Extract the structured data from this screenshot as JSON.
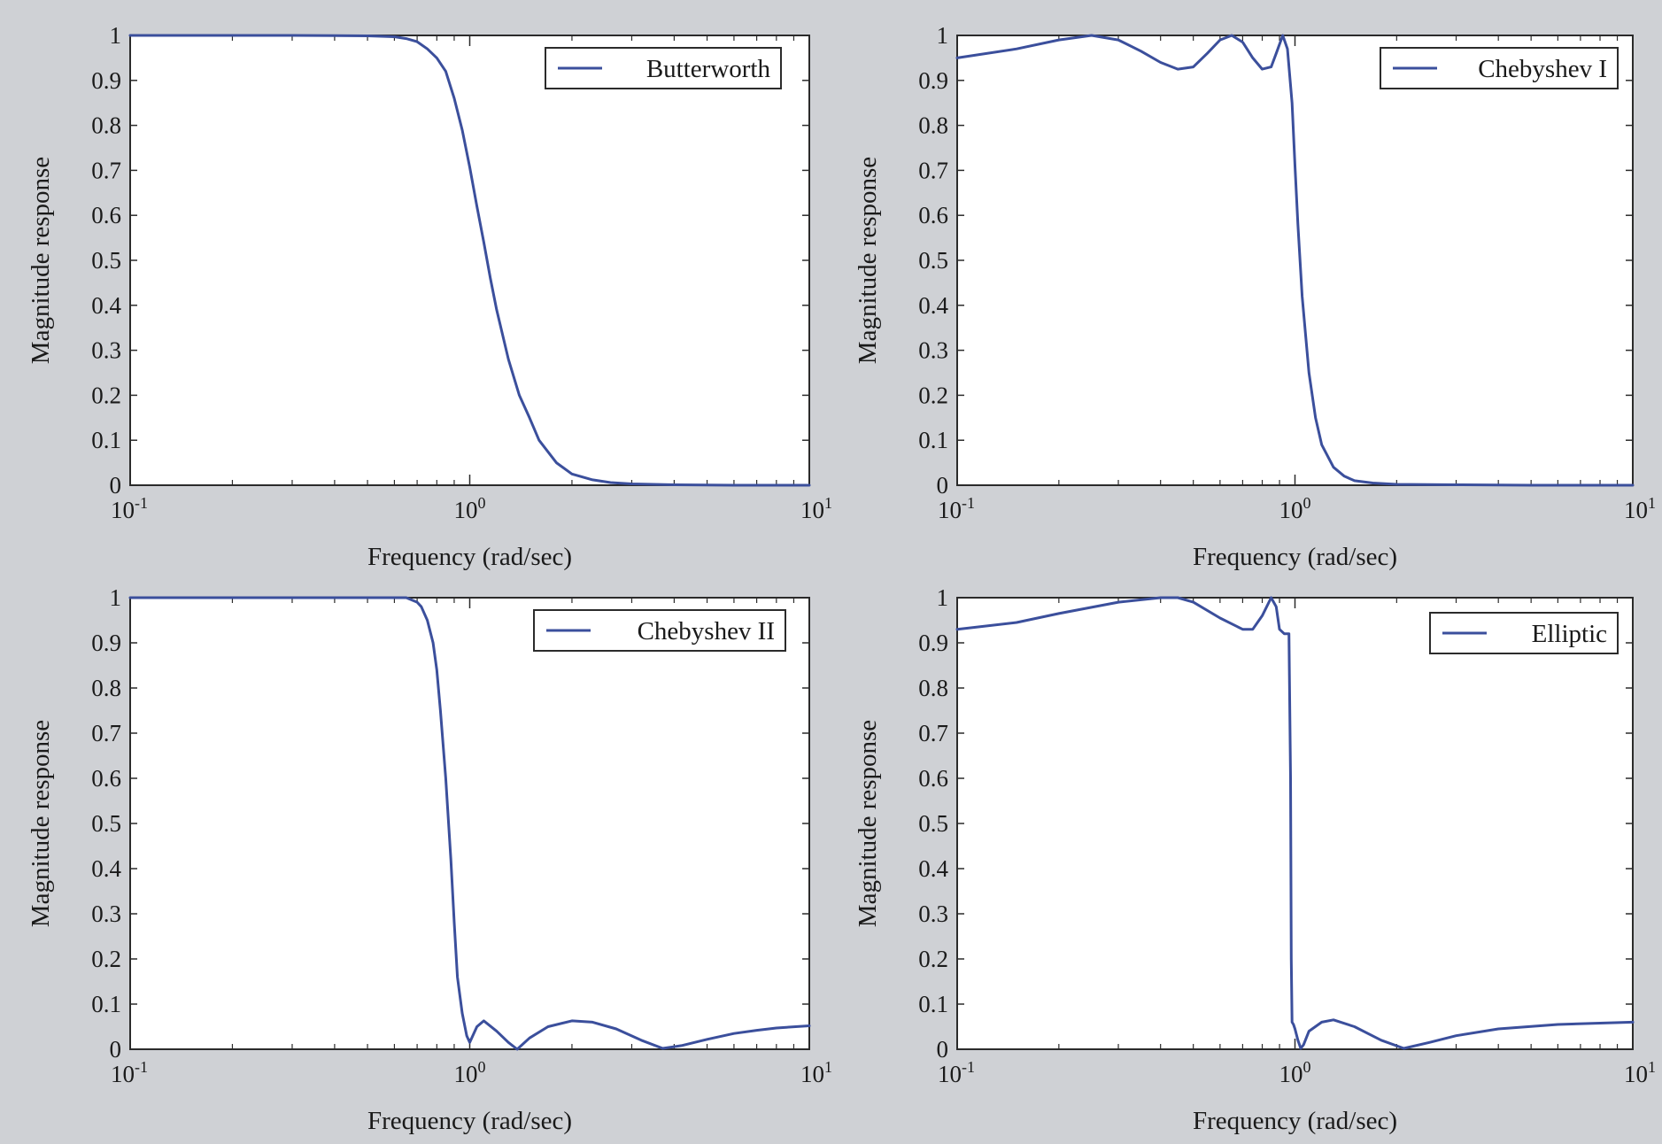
{
  "figure": {
    "background": "#cfd1d5",
    "line_color": "#3b4f9c"
  },
  "chart_data": [
    {
      "type": "line",
      "xscale": "log",
      "xlim": [
        0.1,
        10
      ],
      "ylim": [
        0,
        1
      ],
      "xlabel": "Frequency (rad/sec)",
      "ylabel": "Magnitude response",
      "xticks": [
        {
          "value": 0.1,
          "base": "10",
          "exp": "-1"
        },
        {
          "value": 1,
          "base": "10",
          "exp": "0"
        },
        {
          "value": 10,
          "base": "10",
          "exp": "1"
        }
      ],
      "yticks": [
        "0",
        "0.1",
        "0.2",
        "0.3",
        "0.4",
        "0.5",
        "0.6",
        "0.7",
        "0.8",
        "0.9",
        "1"
      ],
      "legend": "top-right",
      "grid": false,
      "series": [
        {
          "name": "Butterworth",
          "x": [
            0.1,
            0.3,
            0.5,
            0.6,
            0.65,
            0.7,
            0.75,
            0.8,
            0.85,
            0.9,
            0.95,
            1.0,
            1.05,
            1.1,
            1.15,
            1.2,
            1.3,
            1.4,
            1.5,
            1.6,
            1.8,
            2.0,
            2.3,
            2.6,
            3,
            4,
            6,
            10
          ],
          "y": [
            1,
            1,
            0.999,
            0.997,
            0.993,
            0.986,
            0.97,
            0.95,
            0.92,
            0.86,
            0.79,
            0.707,
            0.62,
            0.54,
            0.46,
            0.39,
            0.28,
            0.2,
            0.15,
            0.1,
            0.05,
            0.025,
            0.012,
            0.006,
            0.003,
            0.001,
            0,
            0
          ]
        }
      ]
    },
    {
      "type": "line",
      "xscale": "log",
      "xlim": [
        0.1,
        10
      ],
      "ylim": [
        0,
        1
      ],
      "xlabel": "Frequency (rad/sec)",
      "ylabel": "Magnitude response",
      "xticks": [
        {
          "value": 0.1,
          "base": "10",
          "exp": "-1"
        },
        {
          "value": 1,
          "base": "10",
          "exp": "0"
        },
        {
          "value": 10,
          "base": "10",
          "exp": "1"
        }
      ],
      "yticks": [
        "0",
        "0.1",
        "0.2",
        "0.3",
        "0.4",
        "0.5",
        "0.6",
        "0.7",
        "0.8",
        "0.9",
        "1"
      ],
      "legend": "top-right",
      "grid": false,
      "series": [
        {
          "name": "Chebyshev I",
          "x": [
            0.1,
            0.15,
            0.2,
            0.25,
            0.3,
            0.35,
            0.4,
            0.45,
            0.5,
            0.55,
            0.6,
            0.65,
            0.7,
            0.75,
            0.8,
            0.85,
            0.88,
            0.92,
            0.95,
            0.98,
            1.0,
            1.02,
            1.05,
            1.1,
            1.15,
            1.2,
            1.3,
            1.4,
            1.5,
            1.7,
            2,
            3,
            5,
            10
          ],
          "y": [
            0.95,
            0.97,
            0.99,
            1.0,
            0.99,
            0.965,
            0.94,
            0.925,
            0.93,
            0.96,
            0.99,
            1.0,
            0.985,
            0.95,
            0.925,
            0.93,
            0.96,
            1.0,
            0.97,
            0.85,
            0.71,
            0.58,
            0.42,
            0.25,
            0.15,
            0.09,
            0.04,
            0.02,
            0.01,
            0.005,
            0.002,
            0.001,
            0,
            0
          ]
        }
      ]
    },
    {
      "type": "line",
      "xscale": "log",
      "xlim": [
        0.1,
        10
      ],
      "ylim": [
        0,
        1
      ],
      "xlabel": "Frequency (rad/sec)",
      "ylabel": "Magnitude response",
      "xticks": [
        {
          "value": 0.1,
          "base": "10",
          "exp": "-1"
        },
        {
          "value": 1,
          "base": "10",
          "exp": "0"
        },
        {
          "value": 10,
          "base": "10",
          "exp": "1"
        }
      ],
      "yticks": [
        "0",
        "0.1",
        "0.2",
        "0.3",
        "0.4",
        "0.5",
        "0.6",
        "0.7",
        "0.8",
        "0.9",
        "1"
      ],
      "legend": "top-right",
      "grid": false,
      "series": [
        {
          "name": "Chebyshev II",
          "x": [
            0.1,
            0.5,
            0.65,
            0.7,
            0.72,
            0.75,
            0.78,
            0.8,
            0.82,
            0.85,
            0.88,
            0.9,
            0.92,
            0.95,
            0.98,
            1.0,
            1.05,
            1.1,
            1.2,
            1.3,
            1.38,
            1.5,
            1.7,
            2.0,
            2.3,
            2.7,
            3.2,
            3.7,
            4.2,
            5,
            6,
            7,
            8,
            10
          ],
          "y": [
            1,
            1,
            1,
            0.99,
            0.98,
            0.95,
            0.9,
            0.84,
            0.75,
            0.6,
            0.42,
            0.28,
            0.16,
            0.08,
            0.03,
            0.015,
            0.05,
            0.063,
            0.04,
            0.015,
            0.0,
            0.025,
            0.05,
            0.063,
            0.06,
            0.045,
            0.02,
            0.002,
            0.008,
            0.022,
            0.035,
            0.042,
            0.047,
            0.052
          ]
        }
      ]
    },
    {
      "type": "line",
      "xscale": "log",
      "xlim": [
        0.1,
        10
      ],
      "ylim": [
        0,
        1
      ],
      "xlabel": "Frequency (rad/sec)",
      "ylabel": "Magnitude response",
      "xticks": [
        {
          "value": 0.1,
          "base": "10",
          "exp": "-1"
        },
        {
          "value": 1,
          "base": "10",
          "exp": "0"
        },
        {
          "value": 10,
          "base": "10",
          "exp": "1"
        }
      ],
      "yticks": [
        "0",
        "0.1",
        "0.2",
        "0.3",
        "0.4",
        "0.5",
        "0.6",
        "0.7",
        "0.8",
        "0.9",
        "1"
      ],
      "legend": "top-right",
      "grid": false,
      "series": [
        {
          "name": "Elliptic",
          "x": [
            0.1,
            0.15,
            0.2,
            0.3,
            0.4,
            0.45,
            0.5,
            0.6,
            0.7,
            0.75,
            0.8,
            0.85,
            0.88,
            0.9,
            0.93,
            0.96,
            0.97,
            0.975,
            0.98,
            0.99,
            1.0,
            1.02,
            1.04,
            1.06,
            1.1,
            1.2,
            1.3,
            1.5,
            1.8,
            2.1,
            2.5,
            3,
            4,
            6,
            10
          ],
          "y": [
            0.93,
            0.945,
            0.965,
            0.99,
            1.0,
            1.0,
            0.99,
            0.955,
            0.93,
            0.93,
            0.96,
            1.0,
            0.98,
            0.93,
            0.92,
            0.92,
            0.6,
            0.2,
            0.06,
            0.055,
            0.045,
            0.02,
            0.002,
            0.01,
            0.04,
            0.06,
            0.065,
            0.05,
            0.02,
            0.002,
            0.015,
            0.03,
            0.045,
            0.055,
            0.06
          ]
        }
      ]
    }
  ]
}
